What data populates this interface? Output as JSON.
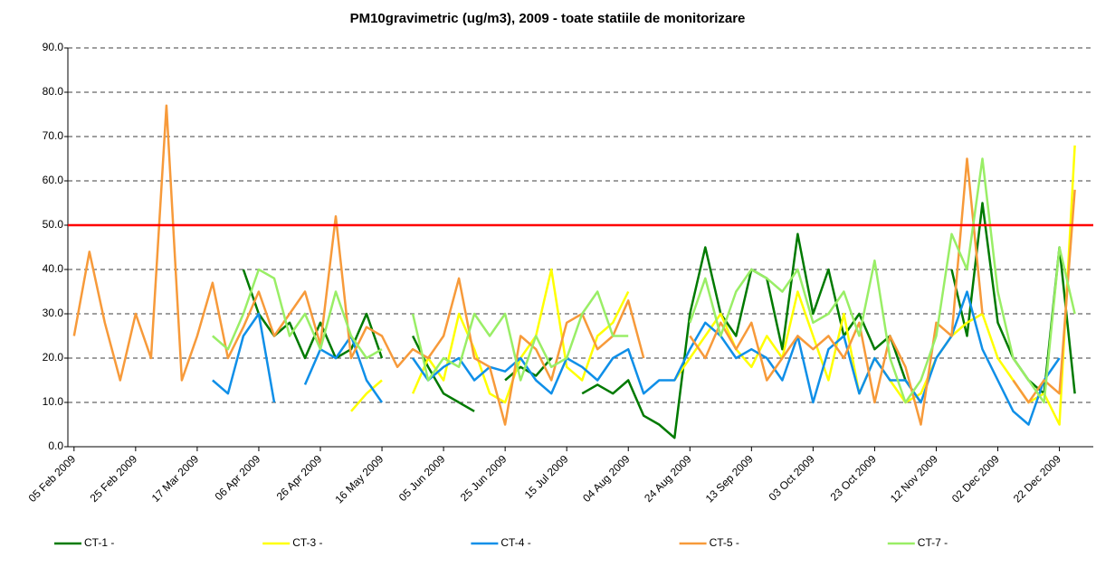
{
  "chart_data": {
    "type": "line",
    "title": "PM10gravimetric (ug/m3), 2009 - toate statiile de monitorizare",
    "x": [
      "2009-02-05",
      "2009-02-10",
      "2009-02-15",
      "2009-02-20",
      "2009-02-25",
      "2009-03-02",
      "2009-03-07",
      "2009-03-12",
      "2009-03-17",
      "2009-03-22",
      "2009-03-27",
      "2009-04-01",
      "2009-04-06",
      "2009-04-11",
      "2009-04-16",
      "2009-04-21",
      "2009-04-26",
      "2009-05-01",
      "2009-05-06",
      "2009-05-11",
      "2009-05-16",
      "2009-05-21",
      "2009-05-26",
      "2009-05-31",
      "2009-06-05",
      "2009-06-10",
      "2009-06-15",
      "2009-06-20",
      "2009-06-25",
      "2009-06-30",
      "2009-07-05",
      "2009-07-10",
      "2009-07-15",
      "2009-07-20",
      "2009-07-25",
      "2009-07-30",
      "2009-08-04",
      "2009-08-09",
      "2009-08-14",
      "2009-08-19",
      "2009-08-24",
      "2009-08-29",
      "2009-09-03",
      "2009-09-08",
      "2009-09-13",
      "2009-09-18",
      "2009-09-23",
      "2009-09-28",
      "2009-10-03",
      "2009-10-08",
      "2009-10-13",
      "2009-10-18",
      "2009-10-23",
      "2009-10-28",
      "2009-11-02",
      "2009-11-07",
      "2009-11-12",
      "2009-11-17",
      "2009-11-22",
      "2009-11-27",
      "2009-12-02",
      "2009-12-07",
      "2009-12-12",
      "2009-12-17",
      "2009-12-22",
      "2009-12-27"
    ],
    "xlim": [
      "2009-02-03",
      "2010-01-02"
    ],
    "xticks": [
      {
        "value": "2009-02-05",
        "label": "05 Feb 2009"
      },
      {
        "value": "2009-02-25",
        "label": "25 Feb 2009"
      },
      {
        "value": "2009-03-17",
        "label": "17 Mar 2009"
      },
      {
        "value": "2009-04-06",
        "label": "06 Apr 2009"
      },
      {
        "value": "2009-04-26",
        "label": "26 Apr 2009"
      },
      {
        "value": "2009-05-16",
        "label": "16 May 2009"
      },
      {
        "value": "2009-06-05",
        "label": "05 Jun 2009"
      },
      {
        "value": "2009-06-25",
        "label": "25 Jun 2009"
      },
      {
        "value": "2009-07-15",
        "label": "15 Jul 2009"
      },
      {
        "value": "2009-08-04",
        "label": "04 Aug 2009"
      },
      {
        "value": "2009-08-24",
        "label": "24 Aug 2009"
      },
      {
        "value": "2009-09-13",
        "label": "13 Sep 2009"
      },
      {
        "value": "2009-10-03",
        "label": "03 Oct 2009"
      },
      {
        "value": "2009-10-23",
        "label": "23 Oct 2009"
      },
      {
        "value": "2009-11-12",
        "label": "12 Nov 2009"
      },
      {
        "value": "2009-12-02",
        "label": "02 Dec 2009"
      },
      {
        "value": "2009-12-22",
        "label": "22 Dec 2009"
      }
    ],
    "ylim": [
      0,
      90
    ],
    "yticks": [
      {
        "value": 0,
        "label": "0.0"
      },
      {
        "value": 10,
        "label": "10.0"
      },
      {
        "value": 20,
        "label": "20.0"
      },
      {
        "value": 30,
        "label": "30.0"
      },
      {
        "value": 40,
        "label": "40.0"
      },
      {
        "value": 50,
        "label": "50.0"
      },
      {
        "value": 60,
        "label": "60.0"
      },
      {
        "value": 70,
        "label": "70.0"
      },
      {
        "value": 80,
        "label": "80.0"
      },
      {
        "value": 90,
        "label": "90.0"
      }
    ],
    "grid": true,
    "threshold": 50,
    "threshold_color": "#ff0000",
    "legend": "bottom",
    "series": [
      {
        "name": "CT-1 -",
        "color": "#007a00",
        "values": [
          null,
          null,
          null,
          null,
          null,
          null,
          null,
          null,
          null,
          null,
          null,
          40,
          30,
          25,
          28,
          20,
          28,
          20,
          22,
          30,
          20,
          null,
          25,
          18,
          12,
          10,
          8,
          null,
          15,
          18,
          16,
          20,
          null,
          12,
          14,
          12,
          15,
          7,
          5,
          2,
          30,
          45,
          30,
          25,
          40,
          38,
          22,
          48,
          30,
          40,
          25,
          30,
          22,
          25,
          15,
          10,
          null,
          40,
          25,
          55,
          28,
          20,
          15,
          12,
          45,
          12
        ]
      },
      {
        "name": "CT-3 -",
        "color": "#ffff00",
        "values": [
          null,
          null,
          null,
          null,
          null,
          null,
          null,
          null,
          null,
          null,
          null,
          null,
          null,
          null,
          null,
          null,
          null,
          null,
          8,
          12,
          15,
          null,
          12,
          20,
          15,
          30,
          22,
          12,
          10,
          20,
          25,
          40,
          18,
          15,
          25,
          28,
          35,
          null,
          null,
          15,
          20,
          25,
          30,
          22,
          18,
          25,
          20,
          35,
          25,
          15,
          30,
          12,
          20,
          15,
          10,
          12,
          20,
          25,
          28,
          30,
          20,
          15,
          10,
          12,
          5,
          68
        ]
      },
      {
        "name": "CT-4 -",
        "color": "#0f8fe8",
        "values": [
          null,
          null,
          null,
          null,
          null,
          null,
          null,
          null,
          null,
          15,
          12,
          25,
          30,
          10,
          null,
          14,
          22,
          20,
          25,
          15,
          10,
          null,
          20,
          15,
          18,
          20,
          15,
          18,
          17,
          20,
          15,
          12,
          20,
          18,
          15,
          20,
          22,
          12,
          15,
          15,
          22,
          28,
          25,
          20,
          22,
          20,
          15,
          25,
          10,
          22,
          25,
          12,
          20,
          15,
          15,
          10,
          20,
          25,
          35,
          22,
          15,
          8,
          5,
          15,
          20,
          null
        ]
      },
      {
        "name": "CT-5 -",
        "color": "#f79a3a",
        "values": [
          25,
          44,
          28,
          15,
          30,
          20,
          77,
          15,
          25,
          37,
          20,
          27,
          35,
          25,
          30,
          35,
          23,
          52,
          20,
          27,
          25,
          18,
          22,
          20,
          25,
          38,
          20,
          18,
          5,
          25,
          22,
          15,
          28,
          30,
          22,
          25,
          33,
          20,
          null,
          null,
          25,
          20,
          28,
          22,
          28,
          15,
          20,
          25,
          22,
          25,
          20,
          28,
          10,
          25,
          18,
          5,
          28,
          25,
          65,
          30,
          null,
          15,
          10,
          15,
          12,
          58
        ]
      },
      {
        "name": "CT-7 -",
        "color": "#99ee66",
        "values": [
          null,
          null,
          null,
          null,
          null,
          null,
          null,
          null,
          null,
          25,
          22,
          30,
          40,
          38,
          25,
          30,
          22,
          35,
          25,
          20,
          22,
          null,
          30,
          15,
          20,
          18,
          30,
          25,
          30,
          15,
          25,
          18,
          20,
          30,
          35,
          25,
          25,
          null,
          null,
          null,
          28,
          38,
          25,
          35,
          40,
          38,
          35,
          40,
          28,
          30,
          35,
          25,
          42,
          20,
          10,
          15,
          25,
          48,
          40,
          65,
          35,
          20,
          15,
          10,
          45,
          30
        ]
      }
    ]
  }
}
